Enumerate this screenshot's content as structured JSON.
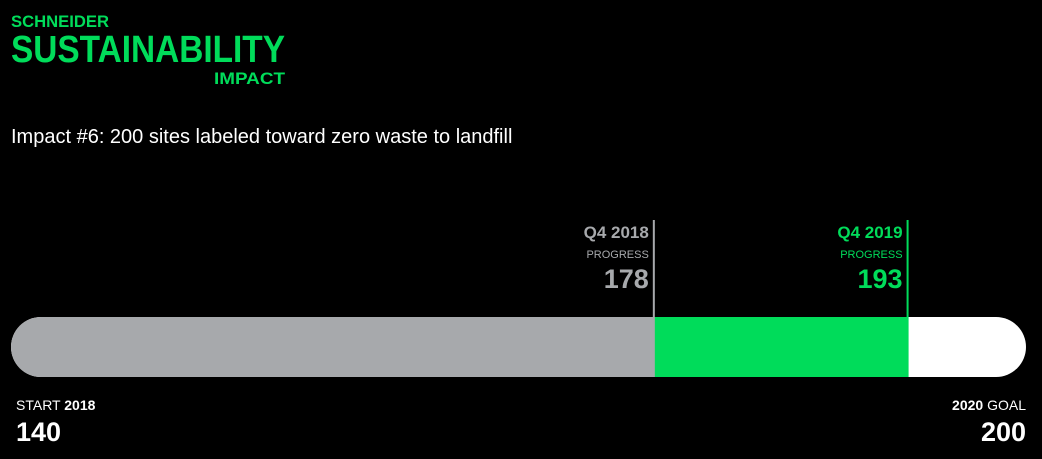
{
  "logo": {
    "line1": "SCHNEIDER",
    "line2": "SUSTAINABILITY",
    "line3": "IMPACT",
    "color": "#00dc5a"
  },
  "chart_data": {
    "type": "progress",
    "title": "Impact #6: 200 sites labeled toward zero waste to landfill",
    "start": {
      "label": "START",
      "year": "2018",
      "value": 140
    },
    "goal": {
      "year": "2020",
      "label": "GOAL",
      "value": 200
    },
    "milestones": [
      {
        "period": "Q4 2018",
        "label": "PROGRESS",
        "value": 178,
        "color": "#a7a9ac"
      },
      {
        "period": "Q4 2019",
        "label": "PROGRESS",
        "value": 193,
        "color": "#00dc5a"
      }
    ],
    "track_color": "#ffffff"
  }
}
